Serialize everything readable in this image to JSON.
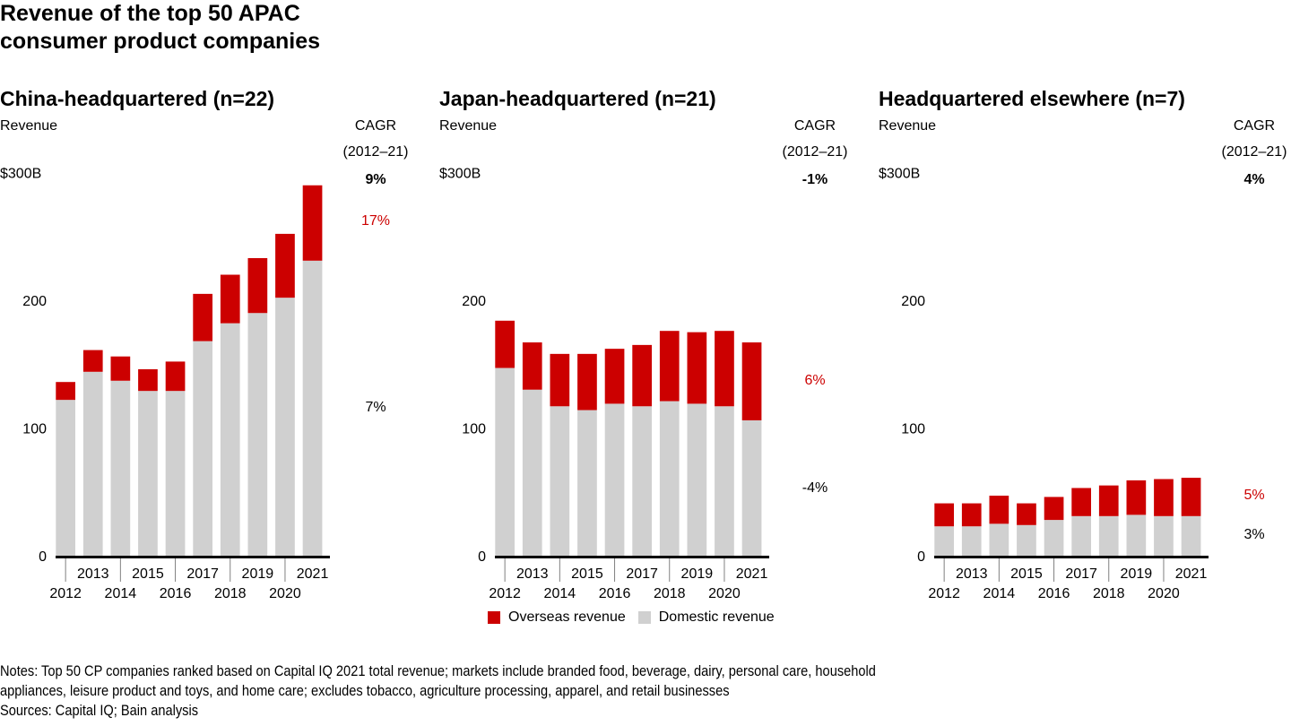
{
  "title_line1": "Revenue of the top 50 APAC",
  "title_line2": "consumer product companies",
  "colors": {
    "overseas": "#cc0000",
    "domestic": "#d0d0d0",
    "axis": "#000000",
    "tick": "#808080"
  },
  "legend": [
    {
      "label": "Overseas revenue",
      "color": "#cc0000"
    },
    {
      "label": "Domestic revenue",
      "color": "#d0d0d0"
    }
  ],
  "notes_line1": "Notes: Top 50 CP companies ranked based on Capital IQ 2021 total revenue; markets include branded food, beverage, dairy, personal care, household",
  "notes_line2": "appliances, leisure product and toys, and home care; excludes tobacco, agriculture processing, apparel, and retail businesses",
  "sources": "Sources: Capital IQ; Bain analysis",
  "chart_data": [
    {
      "type": "bar",
      "stacked": true,
      "title": "China-headquartered (n=22)",
      "ylabel": "Revenue",
      "cagr_header": "CAGR",
      "cagr_period": "(2012–21)",
      "cagr_total": "9%",
      "cagr_overseas": "17%",
      "cagr_domestic": "7%",
      "ylim": [
        0,
        300
      ],
      "yticks": [
        0,
        100,
        200,
        300
      ],
      "ytick_labels": [
        "0",
        "100",
        "200",
        "$300B"
      ],
      "categories": [
        "2012",
        "2013",
        "2014",
        "2015",
        "2016",
        "2017",
        "2018",
        "2019",
        "2020",
        "2021"
      ],
      "series": [
        {
          "name": "Domestic revenue",
          "values": [
            122,
            144,
            137,
            129,
            129,
            168,
            182,
            190,
            202,
            231
          ]
        },
        {
          "name": "Overseas revenue",
          "values": [
            14,
            17,
            19,
            17,
            23,
            37,
            38,
            43,
            50,
            59
          ]
        }
      ]
    },
    {
      "type": "bar",
      "stacked": true,
      "title": "Japan-headquartered (n=21)",
      "ylabel": "Revenue",
      "cagr_header": "CAGR",
      "cagr_period": "(2012–21)",
      "cagr_total": "-1%",
      "cagr_overseas": "6%",
      "cagr_domestic": "-4%",
      "ylim": [
        0,
        300
      ],
      "yticks": [
        0,
        100,
        200,
        300
      ],
      "ytick_labels": [
        "0",
        "100",
        "200",
        "$300B"
      ],
      "categories": [
        "2012",
        "2013",
        "2014",
        "2015",
        "2016",
        "2017",
        "2018",
        "2019",
        "2020",
        "2021"
      ],
      "series": [
        {
          "name": "Domestic revenue",
          "values": [
            147,
            130,
            117,
            114,
            119,
            117,
            121,
            119,
            117,
            106
          ]
        },
        {
          "name": "Overseas revenue",
          "values": [
            37,
            37,
            41,
            44,
            43,
            48,
            55,
            56,
            59,
            61
          ]
        }
      ]
    },
    {
      "type": "bar",
      "stacked": true,
      "title": "Headquartered elsewhere (n=7)",
      "ylabel": "Revenue",
      "cagr_header": "CAGR",
      "cagr_period": "(2012–21)",
      "cagr_total": "4%",
      "cagr_overseas": "5%",
      "cagr_domestic": "3%",
      "ylim": [
        0,
        300
      ],
      "yticks": [
        0,
        100,
        200,
        300
      ],
      "ytick_labels": [
        "0",
        "100",
        "200",
        "$300B"
      ],
      "categories": [
        "2012",
        "2013",
        "2014",
        "2015",
        "2016",
        "2017",
        "2018",
        "2019",
        "2020",
        "2021"
      ],
      "series": [
        {
          "name": "Domestic revenue",
          "values": [
            23,
            23,
            25,
            24,
            28,
            31,
            31,
            32,
            31,
            31
          ]
        },
        {
          "name": "Overseas revenue",
          "values": [
            18,
            18,
            22,
            17,
            18,
            22,
            24,
            27,
            29,
            30
          ]
        }
      ]
    }
  ]
}
